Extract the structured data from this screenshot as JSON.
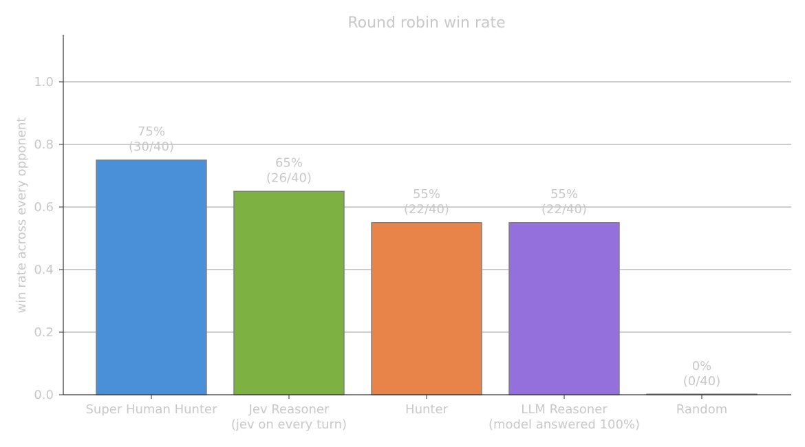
{
  "chart_data": {
    "type": "bar",
    "title": "Round robin win rate",
    "xlabel": "",
    "ylabel": "win rate across every opponent",
    "ylim": [
      0,
      1.15
    ],
    "yticks": [
      0.0,
      0.2,
      0.4,
      0.6,
      0.8,
      1.0
    ],
    "ytick_labels": [
      "0.0",
      "0.2",
      "0.4",
      "0.6",
      "0.8",
      "1.0"
    ],
    "grid": "horizontal",
    "categories": [
      [
        "Super Human Hunter"
      ],
      [
        "Jev Reasoner",
        "(jev on every turn)"
      ],
      [
        "Hunter"
      ],
      [
        "LLM Reasoner",
        "(model answered 100%)"
      ],
      [
        "Random"
      ]
    ],
    "values": [
      0.75,
      0.65,
      0.55,
      0.55,
      0.0
    ],
    "data_labels": [
      [
        "75%",
        "(30/40)"
      ],
      [
        "65%",
        "(26/40)"
      ],
      [
        "55%",
        "(22/40)"
      ],
      [
        "55%",
        "(22/40)"
      ],
      [
        "0%",
        "(0/40)"
      ]
    ],
    "colors": [
      "#4a90d9",
      "#7db243",
      "#e8844a",
      "#9370db",
      "#4a90d9"
    ]
  }
}
